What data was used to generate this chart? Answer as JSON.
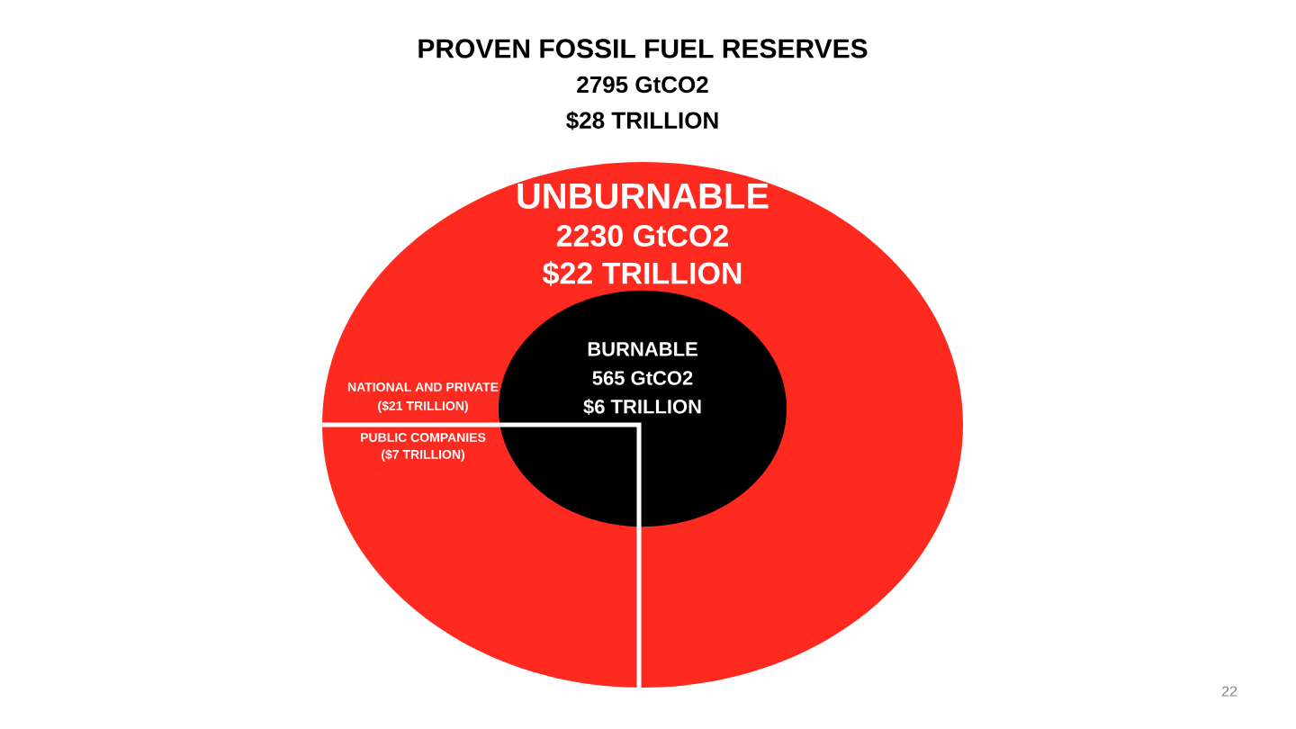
{
  "chart_data": {
    "type": "other",
    "title": "PROVEN FOSSIL FUEL RESERVES",
    "categories": [
      "UNBURNABLE",
      "BURNABLE"
    ],
    "values": [
      2230,
      565
    ],
    "value_labels": [
      "2230 GtCO2",
      "565 GtCO2"
    ],
    "colors": [
      "#ff2a1f",
      "#000000"
    ],
    "annotations": [
      "2795 GtCO2",
      "$28 TRILLION",
      "$22 TRILLION",
      "$6 TRILLION",
      "NATIONAL AND PRIVATE",
      "($21 TRILLION)",
      "PUBLIC COMPANIES",
      "($7 TRILLION)",
      "22"
    ]
  }
}
